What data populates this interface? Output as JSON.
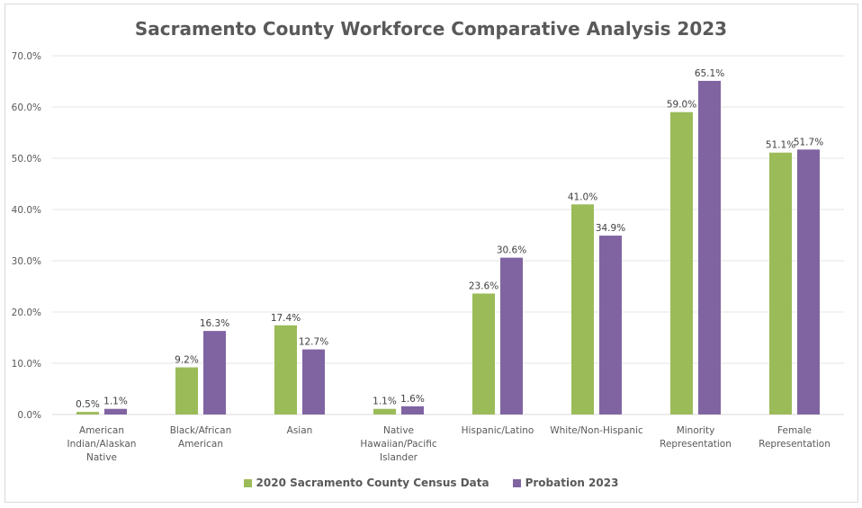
{
  "chart_data": {
    "type": "bar",
    "title": "Sacramento County Workforce Comparative Analysis 2023",
    "categories": [
      "American Indian/Alaskan Native",
      "Black/African American",
      "Asian",
      "Native Hawaiian/Pacific Islander",
      "Hispanic/Latino",
      "White/Non-Hispanic",
      "Minority Representation",
      "Female Representation"
    ],
    "category_lines": [
      [
        "American",
        "Indian/Alaskan",
        "Native"
      ],
      [
        "Black/African",
        "American"
      ],
      [
        "Asian"
      ],
      [
        "Native",
        "Hawaiian/Pacific",
        "Islander"
      ],
      [
        "Hispanic/Latino"
      ],
      [
        "White/Non-Hispanic"
      ],
      [
        "Minority",
        "Representation"
      ],
      [
        "Female",
        "Representation"
      ]
    ],
    "series": [
      {
        "name": "2020 Sacramento County Census Data",
        "color": "#9BBB59",
        "values": [
          0.5,
          9.2,
          17.4,
          1.1,
          23.6,
          41.0,
          59.0,
          51.1
        ]
      },
      {
        "name": "Probation 2023",
        "color": "#8064A2",
        "values": [
          1.1,
          16.3,
          12.7,
          1.6,
          30.6,
          34.9,
          65.1,
          51.7
        ]
      }
    ],
    "ylim": [
      0,
      70
    ],
    "yticks": [
      0,
      10,
      20,
      30,
      40,
      50,
      60,
      70
    ],
    "tick_format": "percent-1dp",
    "grid": true,
    "legend": "bottom"
  }
}
